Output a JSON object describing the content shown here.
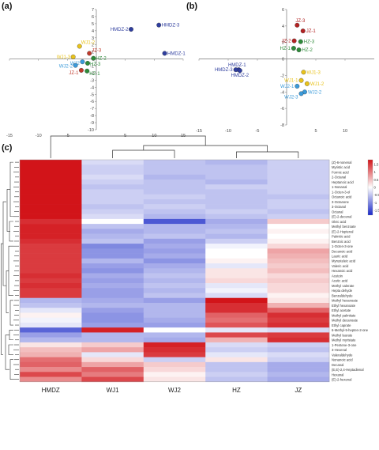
{
  "panels": {
    "a": "(a)",
    "b": "(b)",
    "c": "(c)"
  },
  "chart_data": [
    {
      "type": "scatter",
      "panel": "a",
      "xlim": [
        -15,
        15
      ],
      "ylim": [
        -10,
        7
      ],
      "xticks": [
        -15,
        -10,
        -5,
        0,
        5,
        10,
        15
      ],
      "yticks": [
        -10,
        -9,
        -8,
        -7,
        -6,
        -5,
        -4,
        -3,
        -2,
        -1,
        0,
        1,
        2,
        3,
        4,
        5,
        6,
        7
      ],
      "points": [
        {
          "label": "HMDZ-3",
          "x": 10.8,
          "y": 4.8,
          "color": "#2f3e9e"
        },
        {
          "label": "HMDZ-2",
          "x": 6.0,
          "y": 4.2,
          "color": "#2f3e9e"
        },
        {
          "label": "HMDZ-1",
          "x": 11.8,
          "y": 0.8,
          "color": "#2f3e9e"
        },
        {
          "label": "WJ1-2",
          "x": -2.9,
          "y": 1.8,
          "color": "#e8c21a"
        },
        {
          "label": "JZ-3",
          "x": -1.2,
          "y": 0.8,
          "color": "#c0392b"
        },
        {
          "label": "WJ1-3",
          "x": -4.0,
          "y": 0.3,
          "color": "#e8c21a"
        },
        {
          "label": "WJ2",
          "x": -2.4,
          "y": -0.4,
          "color": "#3a9ad9"
        },
        {
          "label": "HZ-2",
          "x": -0.5,
          "y": 0.1,
          "color": "#2e8b3a"
        },
        {
          "label": "HZ-3",
          "x": -1.5,
          "y": -0.6,
          "color": "#2e8b3a"
        },
        {
          "label": "WJ2-2",
          "x": -3.6,
          "y": -0.9,
          "color": "#3a9ad9"
        },
        {
          "label": "JZ-1",
          "x": -2.6,
          "y": -1.6,
          "color": "#c0392b"
        },
        {
          "label": "HZ-1",
          "x": -1.6,
          "y": -1.7,
          "color": "#2e8b3a"
        }
      ]
    },
    {
      "type": "scatter",
      "panel": "b",
      "xlim": [
        -15,
        15
      ],
      "ylim": [
        -8,
        6
      ],
      "xticks": [
        -15,
        -10,
        -5,
        0,
        5,
        10
      ],
      "yticks": [
        -8,
        -6,
        -4,
        -2,
        0,
        2,
        4,
        6
      ],
      "points": [
        {
          "label": "JZ-3",
          "x": 1.8,
          "y": 4.1,
          "color": "#b22222"
        },
        {
          "label": "JZ-1",
          "x": 2.8,
          "y": 3.4,
          "color": "#b22222"
        },
        {
          "label": "JZ-2",
          "x": 1.3,
          "y": 2.2,
          "color": "#b22222"
        },
        {
          "label": "HZ-3",
          "x": 2.4,
          "y": 2.1,
          "color": "#2e8b3a"
        },
        {
          "label": "HZ-1",
          "x": 1.2,
          "y": 1.3,
          "color": "#2e8b3a"
        },
        {
          "label": "HZ-2",
          "x": 2.1,
          "y": 1.1,
          "color": "#2e8b3a"
        },
        {
          "label": "HMDZ-1",
          "x": -8.2,
          "y": -1.3,
          "color": "#2f3e9e"
        },
        {
          "label": "HMDZ-3",
          "x": -8.7,
          "y": -1.3,
          "color": "#2f3e9e"
        },
        {
          "label": "HMDZ-2",
          "x": -8.0,
          "y": -1.4,
          "color": "#2f3e9e"
        },
        {
          "label": "WJ1-3",
          "x": 2.9,
          "y": -1.6,
          "color": "#e8c21a"
        },
        {
          "label": "WJ1-1",
          "x": 2.5,
          "y": -2.6,
          "color": "#e8c21a"
        },
        {
          "label": "WJ1-2",
          "x": 3.5,
          "y": -3.0,
          "color": "#e8c21a"
        },
        {
          "label": "WJ2-1",
          "x": 1.8,
          "y": -3.3,
          "color": "#3a9ad9"
        },
        {
          "label": "WJ2-2",
          "x": 3.1,
          "y": -4.0,
          "color": "#3a9ad9"
        },
        {
          "label": "WJ2-3",
          "x": 2.5,
          "y": -4.2,
          "color": "#3a9ad9"
        }
      ]
    },
    {
      "type": "heatmap",
      "panel": "c",
      "columns": [
        "HMDZ",
        "WJ1",
        "WJ2",
        "HZ",
        "JZ"
      ],
      "rows": [
        "(Z)-6-nonenal",
        "Myristic acid",
        "Formic acid",
        "2-Octanal",
        "Heptanoic acid",
        "1-Nonanal",
        "1-Octen-3-ol",
        "Octanoic acid",
        "3-Octanone",
        "3-Octanol",
        "Octanal",
        "(E)-2-decenal",
        "Oleic acid",
        "Methyl benzoate",
        "(E)-2-Heptenal",
        "Palmitic acid",
        "Benzoic acid",
        "1-Octen-3-one",
        "Decanoic acid",
        "Lauric acid",
        "Myrusteleic acid",
        "Valeric acid",
        "Hexanoic acid",
        "Acetoin",
        "Acetic acid",
        "Methyl valerate",
        "Hepta dehyde",
        "Benzaldehyde",
        "Methyl hexanoate",
        "Ethyl hexanoate",
        "Ethyl acetate",
        "Methyl palmitate",
        "Methyl decanoate",
        "Ethyl caprate",
        "6-Methyl-5-hepten-2-one",
        "Methyl laurate",
        "Methyl myristate",
        "1-Pentene-3-one",
        "3-Hexenal",
        "Valeraldehyde",
        "Nonanoic acid",
        "Decanal",
        "(E,E)-2,4-Heptadienal",
        "Hexanal",
        "(E)-2-hexenal"
      ],
      "values": [
        [
          1.8,
          -0.3,
          -0.5,
          -0.6,
          -0.4
        ],
        [
          1.8,
          -0.4,
          -0.5,
          -0.5,
          -0.4
        ],
        [
          1.8,
          -0.4,
          -0.5,
          -0.5,
          -0.4
        ],
        [
          1.8,
          -0.3,
          -0.6,
          -0.5,
          -0.4
        ],
        [
          1.8,
          -0.4,
          -0.5,
          -0.6,
          -0.4
        ],
        [
          1.8,
          -0.5,
          -0.5,
          -0.4,
          -0.4
        ],
        [
          1.8,
          -0.4,
          -0.5,
          -0.5,
          -0.4
        ],
        [
          1.8,
          -0.4,
          -0.4,
          -0.5,
          -0.5
        ],
        [
          1.8,
          -0.4,
          -0.5,
          -0.5,
          -0.4
        ],
        [
          1.8,
          -0.5,
          -0.4,
          -0.5,
          -0.4
        ],
        [
          1.8,
          -0.4,
          -0.5,
          -0.4,
          -0.5
        ],
        [
          1.8,
          -0.3,
          -0.6,
          -0.5,
          -0.4
        ],
        [
          1.6,
          0.0,
          -1.4,
          -0.7,
          0.4
        ],
        [
          1.7,
          -0.5,
          -0.6,
          -0.6,
          0.0
        ],
        [
          1.7,
          -0.7,
          -0.6,
          -0.5,
          0.1
        ],
        [
          1.7,
          -0.6,
          -0.5,
          -0.6,
          0.0
        ],
        [
          1.6,
          -0.5,
          -0.8,
          -0.4,
          0.1
        ],
        [
          1.5,
          -1.0,
          -0.7,
          -0.1,
          0.3
        ],
        [
          1.5,
          -0.9,
          -0.8,
          0.0,
          0.7
        ],
        [
          1.5,
          -0.9,
          -0.7,
          0.0,
          0.6
        ],
        [
          1.5,
          -0.6,
          -0.9,
          0.1,
          0.5
        ],
        [
          1.5,
          -0.8,
          -0.7,
          -0.2,
          0.4
        ],
        [
          1.5,
          -0.9,
          -0.6,
          0.2,
          0.5
        ],
        [
          1.6,
          -0.7,
          -0.5,
          0.2,
          0.3
        ],
        [
          1.5,
          -0.8,
          -0.6,
          0.3,
          0.4
        ],
        [
          1.6,
          -0.7,
          -0.5,
          -0.2,
          0.3
        ],
        [
          1.5,
          -0.8,
          -0.6,
          -0.1,
          0.3
        ],
        [
          1.5,
          -0.8,
          -0.5,
          -0.3,
          0.1
        ],
        [
          -0.6,
          -0.7,
          -0.8,
          1.8,
          0.2
        ],
        [
          -0.5,
          -0.6,
          -0.6,
          1.6,
          0.6
        ],
        [
          -0.2,
          -0.8,
          -0.6,
          1.6,
          1.2
        ],
        [
          0.1,
          -0.9,
          -0.6,
          1.2,
          1.6
        ],
        [
          -0.1,
          -0.9,
          -0.7,
          1.1,
          1.5
        ],
        [
          -0.2,
          -0.8,
          -0.8,
          1.3,
          1.6
        ],
        [
          -1.3,
          1.7,
          0.0,
          -0.2,
          -0.3
        ],
        [
          -0.8,
          -0.6,
          -0.6,
          1.4,
          1.5
        ],
        [
          -0.6,
          -0.6,
          -0.7,
          0.6,
          1.6
        ],
        [
          0.2,
          0.4,
          1.7,
          -0.3,
          -0.4
        ],
        [
          0.5,
          0.7,
          1.6,
          -0.4,
          -0.5
        ],
        [
          0.6,
          -0.2,
          1.5,
          -0.2,
          -0.3
        ],
        [
          1.1,
          0.3,
          -0.4,
          0.2,
          -0.4
        ],
        [
          1.2,
          0.7,
          0.4,
          -0.5,
          -0.7
        ],
        [
          0.9,
          1.2,
          0.3,
          -0.5,
          -0.7
        ],
        [
          1.4,
          1.0,
          0.1,
          -0.4,
          -0.6
        ],
        [
          0.9,
          1.4,
          0.2,
          -0.5,
          -0.7
        ]
      ],
      "colorbar": {
        "ticks": [
          1.5,
          1,
          0.5,
          0,
          -0.5,
          -1,
          -1.5
        ],
        "min": -1.8,
        "max": 1.8
      }
    }
  ]
}
